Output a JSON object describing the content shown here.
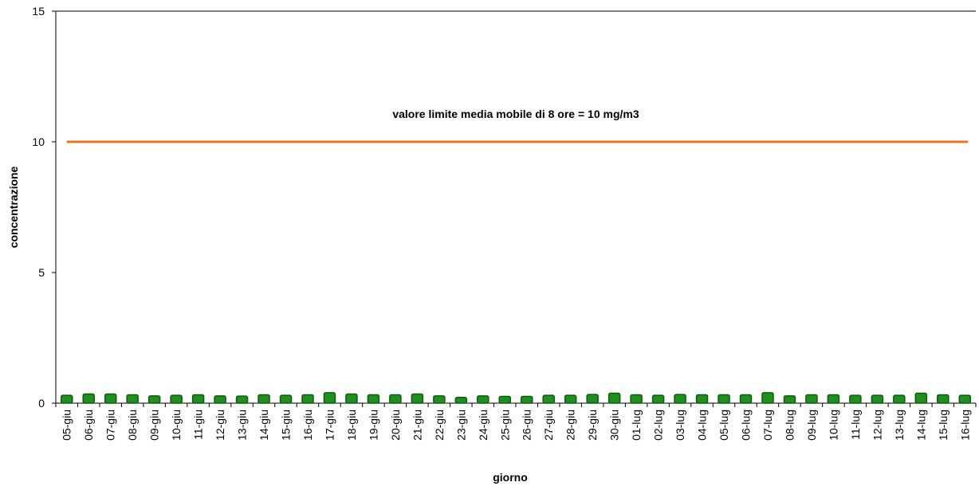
{
  "chart_data": {
    "type": "bar",
    "x_label": "giorno",
    "y_label": "concentrazione",
    "categories": [
      "05-giu",
      "06-giu",
      "07-giu",
      "08-giu",
      "09-giu",
      "10-giu",
      "11-giu",
      "12-giu",
      "13-giu",
      "14-giu",
      "15-giu",
      "16-giu",
      "17-giu",
      "18-giu",
      "19-giu",
      "20-giu",
      "21-giu",
      "22-giu",
      "23-giu",
      "24-giu",
      "25-giu",
      "26-giu",
      "27-giu",
      "28-giu",
      "29-giu",
      "30-giu",
      "01-lug",
      "02-lug",
      "03-lug",
      "04-lug",
      "05-lug",
      "06-lug",
      "07-lug",
      "08-lug",
      "09-lug",
      "10-lug",
      "11-lug",
      "12-lug",
      "13-lug",
      "14-lug",
      "15-lug",
      "16-lug"
    ],
    "values": [
      0.3,
      0.35,
      0.35,
      0.32,
      0.28,
      0.3,
      0.32,
      0.28,
      0.27,
      0.32,
      0.3,
      0.32,
      0.4,
      0.35,
      0.32,
      0.32,
      0.35,
      0.28,
      0.22,
      0.28,
      0.26,
      0.26,
      0.3,
      0.3,
      0.33,
      0.38,
      0.32,
      0.3,
      0.33,
      0.32,
      0.32,
      0.32,
      0.4,
      0.28,
      0.32,
      0.32,
      0.3,
      0.3,
      0.3,
      0.38,
      0.32,
      0.3
    ],
    "color": "#1f8f1f",
    "limit": {
      "value": 10,
      "label": "valore limite media mobile di 8 ore = 10 mg/m3",
      "color": "#e8731e"
    },
    "ylim": [
      0,
      15
    ],
    "yticks": [
      0,
      5,
      10,
      15
    ]
  }
}
